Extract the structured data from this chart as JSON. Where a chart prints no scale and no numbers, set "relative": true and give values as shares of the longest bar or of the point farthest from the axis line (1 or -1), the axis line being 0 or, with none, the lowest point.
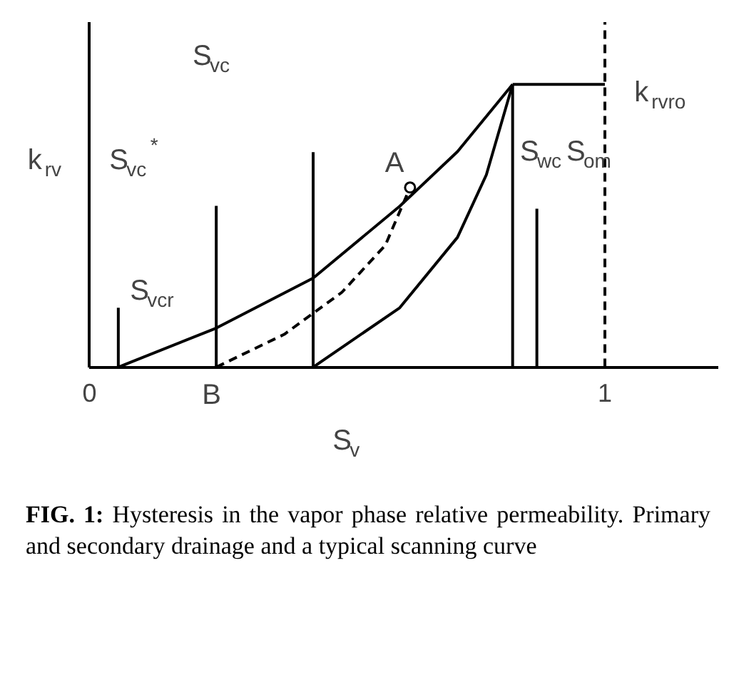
{
  "chart_data": {
    "type": "line",
    "relative": true,
    "xlabel": "S$_{v}$",
    "ylabel": "k$_{rv}$",
    "xlim": [
      0,
      1.22
    ],
    "xticks": [
      0,
      1
    ],
    "grid": false,
    "marker": "none",
    "series": [
      {
        "color": "#000000",
        "x": [
          0.056,
          0.246,
          0.434,
          0.602,
          0.714,
          0.821
        ],
        "values": [
          0,
          0.138,
          0.315,
          0.569,
          0.762,
          1
        ]
      },
      {
        "color": "#000000",
        "x": [
          0.434,
          0.602,
          0.714,
          0.77,
          0.821
        ],
        "values": [
          0,
          0.21,
          0.459,
          0.68,
          1
        ]
      },
      {
        "color": "#000000",
        "line_style": "dashed",
        "x": [
          0.246,
          0.378,
          0.49,
          0.574,
          0.622
        ],
        "values": [
          0,
          0.116,
          0.265,
          0.431,
          0.635
        ]
      },
      {
        "color": "#000000",
        "x": [
          0.821,
          1.0
        ],
        "values": [
          1,
          1
        ]
      },
      {
        "color": "#000000",
        "x": [
          0.434,
          0.434
        ],
        "values": [
          0,
          0.76
        ]
      },
      {
        "color": "#000000",
        "x": [
          0.246,
          0.246
        ],
        "values": [
          0,
          0.57
        ]
      },
      {
        "color": "#000000",
        "x": [
          0.056,
          0.056
        ],
        "values": [
          0,
          0.21
        ]
      },
      {
        "color": "#000000",
        "x": [
          0.821,
          0.821
        ],
        "values": [
          0,
          1
        ]
      },
      {
        "color": "#000000",
        "x": [
          0.868,
          0.868
        ],
        "values": [
          0,
          0.56
        ]
      },
      {
        "type": "scatter",
        "marker": "circle",
        "color": "#000000",
        "x": [
          0.622
        ],
        "values": [
          0.635
        ]
      }
    ],
    "ref_lines": [
      {
        "axis": "x",
        "value": 1,
        "line_style": "dashed",
        "color": "#000000"
      }
    ],
    "annotations": [
      "S$_{vc}$",
      "S$_{vc}$$^{*}$",
      "S$_{vcr}$",
      "A",
      "B",
      "S$_{wc}$",
      "S$_{om}$",
      "k$_{rvro}$",
      "FIG. 1: Hysteresis in the vapor phase relative permeability. Primary and secondary drainage and a typical scanning curve"
    ]
  }
}
